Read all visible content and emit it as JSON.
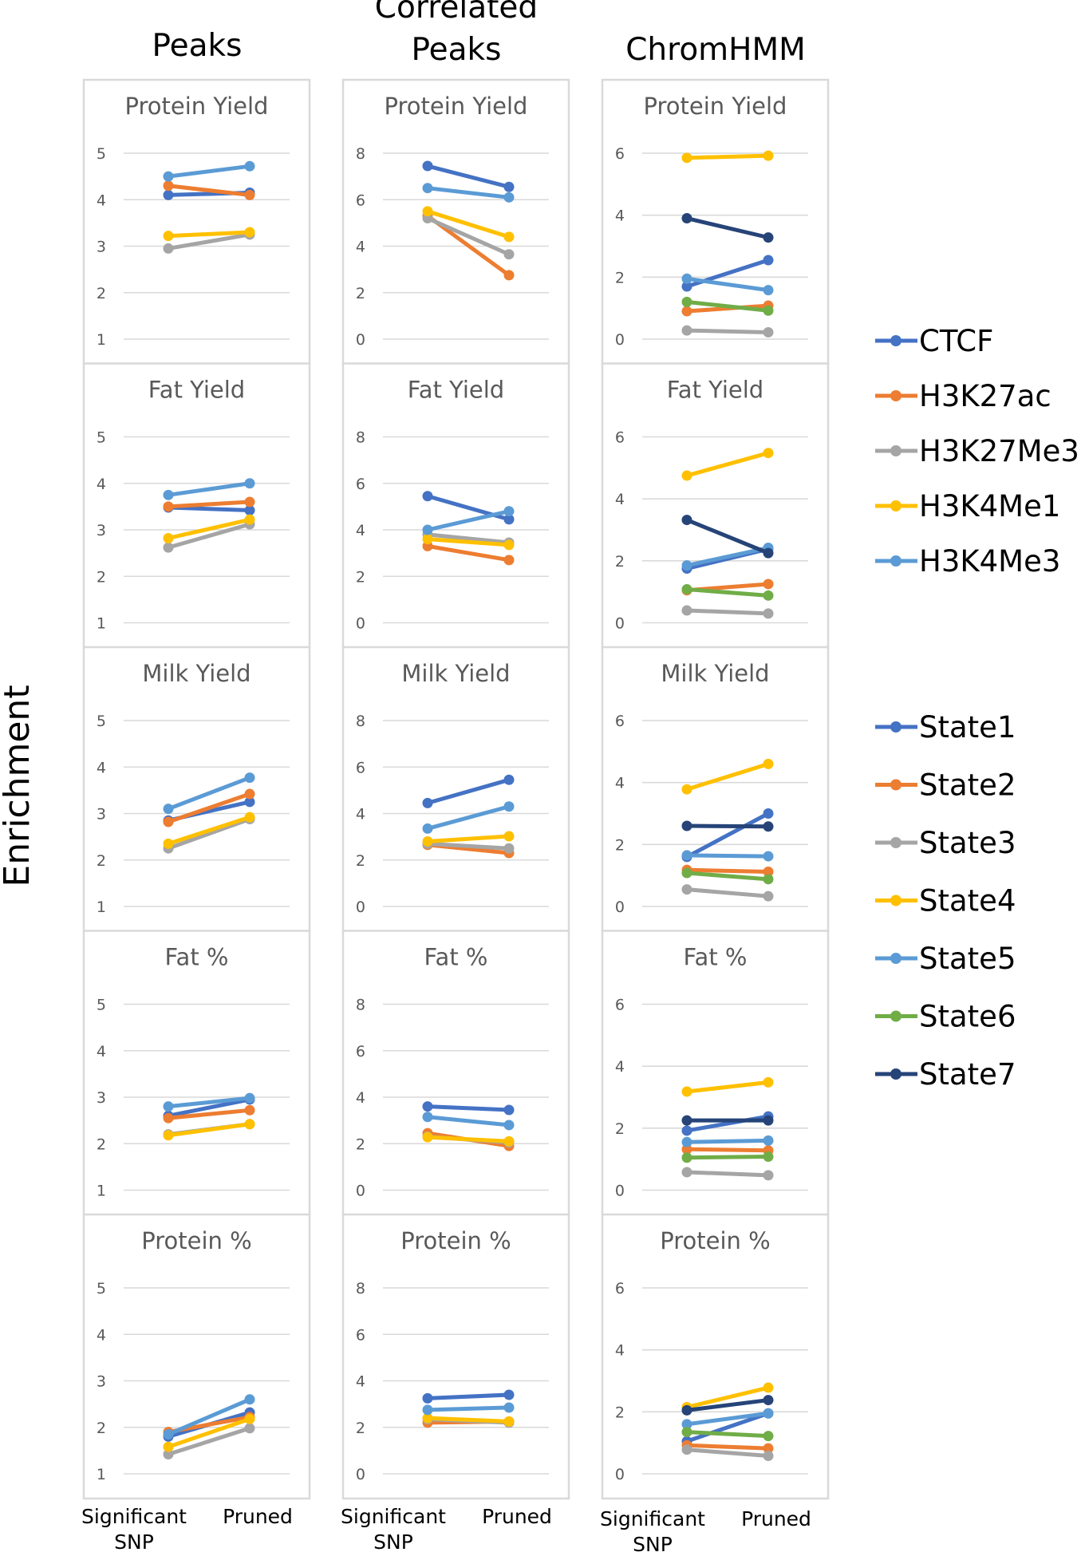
{
  "figure": {
    "y_axis_label": "Enrichment",
    "x_labels": [
      "Significant SNP",
      "Pruned"
    ]
  },
  "legend": {
    "peaks": [
      {
        "name": "CTCF",
        "color": "#4472C4"
      },
      {
        "name": "H3K27ac",
        "color": "#ED7D31"
      },
      {
        "name": "H3K27Me3",
        "color": "#A5A5A5"
      },
      {
        "name": "H3K4Me1",
        "color": "#FFC000"
      },
      {
        "name": "H3K4Me3",
        "color": "#5B9BD5"
      }
    ],
    "states": [
      {
        "name": "State1",
        "color": "#4472C4"
      },
      {
        "name": "State2",
        "color": "#ED7D31"
      },
      {
        "name": "State3",
        "color": "#A5A5A5"
      },
      {
        "name": "State4",
        "color": "#FFC000"
      },
      {
        "name": "State5",
        "color": "#5B9BD5"
      },
      {
        "name": "State6",
        "color": "#70AD47"
      },
      {
        "name": "State7",
        "color": "#264478"
      }
    ]
  },
  "chart_data": [
    {
      "type": "line",
      "column_title": "Peaks",
      "categories": [
        "Significant SNP",
        "Pruned"
      ],
      "ylim": [
        1,
        5
      ],
      "yticks": [
        1,
        2,
        3,
        4,
        5
      ],
      "panels": [
        {
          "title": "Protein Yield",
          "series": [
            {
              "name": "CTCF",
              "values": [
                4.1,
                4.15
              ]
            },
            {
              "name": "H3K27ac",
              "values": [
                4.3,
                4.1
              ]
            },
            {
              "name": "H3K27Me3",
              "values": [
                2.95,
                3.25
              ]
            },
            {
              "name": "H3K4Me1",
              "values": [
                3.22,
                3.3
              ]
            },
            {
              "name": "H3K4Me3",
              "values": [
                4.5,
                4.72
              ]
            }
          ]
        },
        {
          "title": "Fat Yield",
          "series": [
            {
              "name": "CTCF",
              "values": [
                3.48,
                3.42
              ]
            },
            {
              "name": "H3K27ac",
              "values": [
                3.5,
                3.6
              ]
            },
            {
              "name": "H3K27Me3",
              "values": [
                2.62,
                3.12
              ]
            },
            {
              "name": "H3K4Me1",
              "values": [
                2.82,
                3.22
              ]
            },
            {
              "name": "H3K4Me3",
              "values": [
                3.75,
                4.0
              ]
            }
          ]
        },
        {
          "title": "Milk Yield",
          "series": [
            {
              "name": "CTCF",
              "values": [
                2.85,
                3.25
              ]
            },
            {
              "name": "H3K27ac",
              "values": [
                2.82,
                3.42
              ]
            },
            {
              "name": "H3K27Me3",
              "values": [
                2.25,
                2.88
              ]
            },
            {
              "name": "H3K4Me1",
              "values": [
                2.35,
                2.92
              ]
            },
            {
              "name": "H3K4Me3",
              "values": [
                3.1,
                3.77
              ]
            }
          ]
        },
        {
          "title": "Fat %",
          "series": [
            {
              "name": "CTCF",
              "values": [
                2.6,
                2.95
              ]
            },
            {
              "name": "H3K27ac",
              "values": [
                2.55,
                2.72
              ]
            },
            {
              "name": "H3K27Me3",
              "values": [
                2.2,
                2.42
              ]
            },
            {
              "name": "H3K4Me1",
              "values": [
                2.18,
                2.42
              ]
            },
            {
              "name": "H3K4Me3",
              "values": [
                2.8,
                2.98
              ]
            }
          ]
        },
        {
          "title": "Protein %",
          "series": [
            {
              "name": "CTCF",
              "values": [
                1.8,
                2.32
              ]
            },
            {
              "name": "H3K27ac",
              "values": [
                1.9,
                2.22
              ]
            },
            {
              "name": "H3K27Me3",
              "values": [
                1.42,
                1.98
              ]
            },
            {
              "name": "H3K4Me1",
              "values": [
                1.58,
                2.18
              ]
            },
            {
              "name": "H3K4Me3",
              "values": [
                1.85,
                2.6
              ]
            }
          ]
        }
      ]
    },
    {
      "type": "line",
      "column_title": "Correlated Peaks",
      "categories": [
        "Significant SNP",
        "Pruned"
      ],
      "ylim": [
        0,
        8
      ],
      "yticks": [
        0,
        2,
        4,
        6,
        8
      ],
      "panels": [
        {
          "title": "Protein Yield",
          "series": [
            {
              "name": "CTCF",
              "values": [
                7.45,
                6.55
              ]
            },
            {
              "name": "H3K27ac",
              "values": [
                5.3,
                2.75
              ]
            },
            {
              "name": "H3K27Me3",
              "values": [
                5.2,
                3.65
              ]
            },
            {
              "name": "H3K4Me1",
              "values": [
                5.5,
                4.4
              ]
            },
            {
              "name": "H3K4Me3",
              "values": [
                6.5,
                6.1
              ]
            }
          ]
        },
        {
          "title": "Fat Yield",
          "series": [
            {
              "name": "CTCF",
              "values": [
                5.45,
                4.45
              ]
            },
            {
              "name": "H3K27ac",
              "values": [
                3.3,
                2.7
              ]
            },
            {
              "name": "H3K27Me3",
              "values": [
                3.8,
                3.45
              ]
            },
            {
              "name": "H3K4Me1",
              "values": [
                3.6,
                3.35
              ]
            },
            {
              "name": "H3K4Me3",
              "values": [
                4.0,
                4.8
              ]
            }
          ]
        },
        {
          "title": "Milk Yield",
          "series": [
            {
              "name": "CTCF",
              "values": [
                4.45,
                5.45
              ]
            },
            {
              "name": "H3K27ac",
              "values": [
                2.65,
                2.3
              ]
            },
            {
              "name": "H3K27Me3",
              "values": [
                2.7,
                2.5
              ]
            },
            {
              "name": "H3K4Me1",
              "values": [
                2.8,
                3.02
              ]
            },
            {
              "name": "H3K4Me3",
              "values": [
                3.35,
                4.3
              ]
            }
          ]
        },
        {
          "title": "Fat %",
          "series": [
            {
              "name": "CTCF",
              "values": [
                3.6,
                3.45
              ]
            },
            {
              "name": "H3K27ac",
              "values": [
                2.45,
                1.9
              ]
            },
            {
              "name": "H3K27Me3",
              "values": [
                2.3,
                2.05
              ]
            },
            {
              "name": "H3K4Me1",
              "values": [
                2.28,
                2.1
              ]
            },
            {
              "name": "H3K4Me3",
              "values": [
                3.15,
                2.8
              ]
            }
          ]
        },
        {
          "title": "Protein %",
          "series": [
            {
              "name": "CTCF",
              "values": [
                3.25,
                3.4
              ]
            },
            {
              "name": "H3K27ac",
              "values": [
                2.2,
                2.25
              ]
            },
            {
              "name": "H3K27Me3",
              "values": [
                2.35,
                2.2
              ]
            },
            {
              "name": "H3K4Me1",
              "values": [
                2.4,
                2.25
              ]
            },
            {
              "name": "H3K4Me3",
              "values": [
                2.75,
                2.85
              ]
            }
          ]
        }
      ]
    },
    {
      "type": "line",
      "column_title": "ChromHMM",
      "categories": [
        "Significant SNP",
        "Pruned"
      ],
      "ylim": [
        0,
        6
      ],
      "yticks": [
        0,
        2,
        4,
        6
      ],
      "panels": [
        {
          "title": "Protein Yield",
          "series": [
            {
              "name": "State1",
              "values": [
                1.7,
                2.55
              ]
            },
            {
              "name": "State2",
              "values": [
                0.9,
                1.08
              ]
            },
            {
              "name": "State3",
              "values": [
                0.28,
                0.22
              ]
            },
            {
              "name": "State4",
              "values": [
                5.85,
                5.92
              ]
            },
            {
              "name": "State5",
              "values": [
                1.95,
                1.58
              ]
            },
            {
              "name": "State6",
              "values": [
                1.2,
                0.92
              ]
            },
            {
              "name": "State7",
              "values": [
                3.9,
                3.28
              ]
            }
          ]
        },
        {
          "title": "Fat Yield",
          "series": [
            {
              "name": "State1",
              "values": [
                1.75,
                2.38
              ]
            },
            {
              "name": "State2",
              "values": [
                1.05,
                1.25
              ]
            },
            {
              "name": "State3",
              "values": [
                0.4,
                0.3
              ]
            },
            {
              "name": "State4",
              "values": [
                4.75,
                5.48
              ]
            },
            {
              "name": "State5",
              "values": [
                1.85,
                2.42
              ]
            },
            {
              "name": "State6",
              "values": [
                1.08,
                0.88
              ]
            },
            {
              "name": "State7",
              "values": [
                3.32,
                2.25
              ]
            }
          ]
        },
        {
          "title": "Milk Yield",
          "series": [
            {
              "name": "State1",
              "values": [
                1.6,
                3.0
              ]
            },
            {
              "name": "State2",
              "values": [
                1.18,
                1.12
              ]
            },
            {
              "name": "State3",
              "values": [
                0.55,
                0.33
              ]
            },
            {
              "name": "State4",
              "values": [
                3.78,
                4.6
              ]
            },
            {
              "name": "State5",
              "values": [
                1.65,
                1.62
              ]
            },
            {
              "name": "State6",
              "values": [
                1.08,
                0.88
              ]
            },
            {
              "name": "State7",
              "values": [
                2.6,
                2.58
              ]
            }
          ]
        },
        {
          "title": "Fat %",
          "series": [
            {
              "name": "State1",
              "values": [
                1.92,
                2.38
              ]
            },
            {
              "name": "State2",
              "values": [
                1.32,
                1.28
              ]
            },
            {
              "name": "State3",
              "values": [
                0.58,
                0.48
              ]
            },
            {
              "name": "State4",
              "values": [
                3.18,
                3.48
              ]
            },
            {
              "name": "State5",
              "values": [
                1.55,
                1.6
              ]
            },
            {
              "name": "State6",
              "values": [
                1.05,
                1.08
              ]
            },
            {
              "name": "State7",
              "values": [
                2.25,
                2.25
              ]
            }
          ]
        },
        {
          "title": "Protein %",
          "series": [
            {
              "name": "State1",
              "values": [
                1.05,
                1.95
              ]
            },
            {
              "name": "State2",
              "values": [
                0.92,
                0.82
              ]
            },
            {
              "name": "State3",
              "values": [
                0.78,
                0.58
              ]
            },
            {
              "name": "State4",
              "values": [
                2.15,
                2.78
              ]
            },
            {
              "name": "State5",
              "values": [
                1.6,
                1.95
              ]
            },
            {
              "name": "State6",
              "values": [
                1.35,
                1.22
              ]
            },
            {
              "name": "State7",
              "values": [
                2.05,
                2.38
              ]
            }
          ]
        }
      ]
    }
  ]
}
